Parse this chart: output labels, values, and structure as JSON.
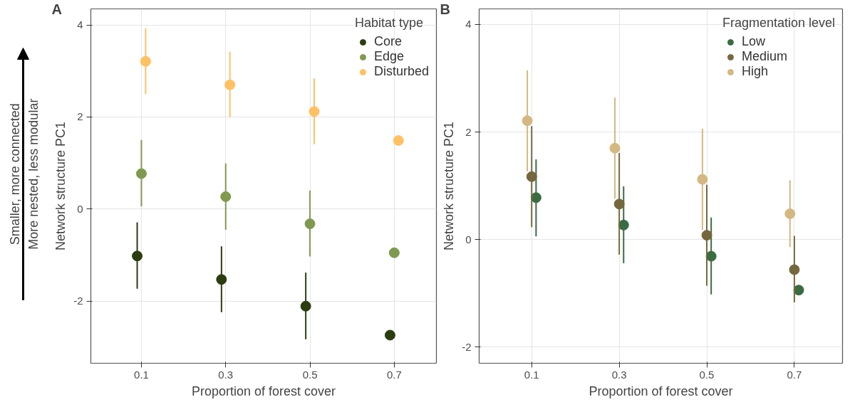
{
  "chart_data": [
    {
      "type": "scatter",
      "title": "A",
      "xlabel": "Proportion of forest cover",
      "ylabel": "Network structure PC1",
      "legend_title": "Habitat type",
      "legend": "top right",
      "grid": true,
      "marker": "circle",
      "xlim": [
        -0.02,
        0.8
      ],
      "xticks": [
        0.1,
        0.3,
        0.5,
        0.7
      ],
      "ylim": [
        -3.35,
        4.35
      ],
      "yticks": [
        -2,
        0,
        2,
        4
      ],
      "annotations": [
        "Smaller, more connected",
        "More nested, less modular"
      ],
      "series": [
        {
          "name": "Core",
          "color": "#2b3d10",
          "x": [
            0.09,
            0.29,
            0.49,
            0.69
          ],
          "values": [
            -1.02,
            -1.53,
            -2.11,
            -2.74
          ],
          "errors": [
            [
              -1.73,
              -0.29
            ],
            [
              -2.24,
              -0.81
            ],
            [
              -2.83,
              -1.38
            ],
            null
          ]
        },
        {
          "name": "Edge",
          "color": "#7f9a50",
          "x": [
            0.1,
            0.3,
            0.5,
            0.7
          ],
          "values": [
            0.77,
            0.27,
            -0.32,
            -0.95
          ],
          "errors": [
            [
              0.06,
              1.5
            ],
            [
              -0.45,
              0.99
            ],
            [
              -1.03,
              0.4
            ],
            null
          ]
        },
        {
          "name": "Disturbed",
          "color": "#ffc163",
          "x": [
            0.11,
            0.31,
            0.51,
            0.71
          ],
          "values": [
            3.21,
            2.7,
            2.12,
            1.49
          ],
          "errors": [
            [
              2.5,
              3.93
            ],
            [
              2.0,
              3.42
            ],
            [
              1.41,
              2.84
            ],
            null
          ]
        }
      ]
    },
    {
      "type": "scatter",
      "title": "B",
      "xlabel": "Proportion of forest cover",
      "ylabel": "Network structure PC1",
      "legend_title": "Fragmentation level",
      "legend": "top right",
      "grid": true,
      "marker": "circle",
      "xlim": [
        -0.02,
        0.81
      ],
      "xticks": [
        0.1,
        0.3,
        0.5,
        0.7
      ],
      "ylim": [
        -2.3,
        4.29
      ],
      "yticks": [
        -2,
        0,
        2,
        4
      ],
      "series": [
        {
          "name": "Low",
          "color": "#3b6b42",
          "x": [
            0.11,
            0.31,
            0.51,
            0.71
          ],
          "values": [
            0.78,
            0.27,
            -0.31,
            -0.94
          ],
          "errors": [
            [
              0.06,
              1.49
            ],
            [
              -0.44,
              0.99
            ],
            [
              -1.02,
              0.41
            ],
            null
          ]
        },
        {
          "name": "Medium",
          "color": "#76683e",
          "x": [
            0.1,
            0.3,
            0.5,
            0.7
          ],
          "values": [
            1.17,
            0.66,
            0.08,
            -0.56
          ],
          "errors": [
            [
              0.23,
              2.11
            ],
            [
              -0.28,
              1.61
            ],
            [
              -0.86,
              1.02
            ],
            [
              -1.17,
              0.07
            ]
          ]
        },
        {
          "name": "High",
          "color": "#d4b882",
          "x": [
            0.09,
            0.29,
            0.49,
            0.69
          ],
          "values": [
            2.21,
            1.7,
            1.12,
            0.48
          ],
          "errors": [
            [
              1.27,
              3.15
            ],
            [
              0.76,
              2.64
            ],
            [
              0.18,
              2.06
            ],
            [
              -0.14,
              1.1
            ]
          ]
        }
      ]
    }
  ]
}
